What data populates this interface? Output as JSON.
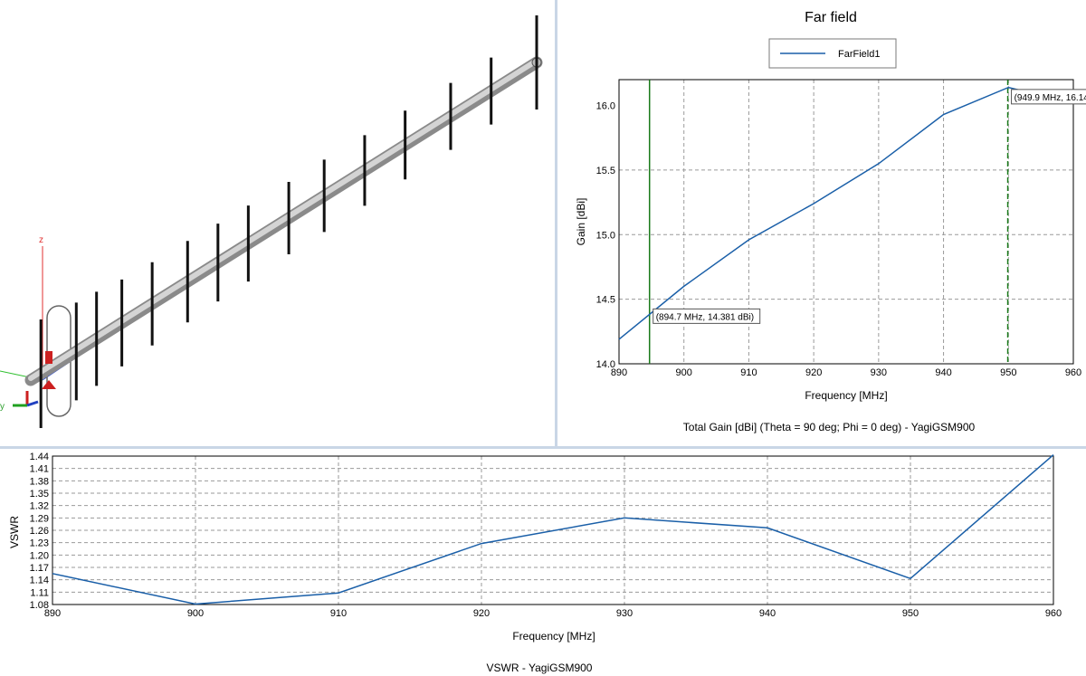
{
  "view3d": {
    "axis_labels": {
      "z": "z",
      "y": "y"
    },
    "colors": {
      "boom": "#bdbdbd",
      "element": "#111111",
      "axis_z": "#e03030",
      "axis_y": "#30c030",
      "axis_x": "#3050d0"
    }
  },
  "farfield": {
    "title": "Far field",
    "caption": "Total Gain [dBi] (Theta = 90 deg; Phi = 0 deg) - YagiGSM900",
    "markers": [
      {
        "x": 894.7,
        "label": "(894.7 MHz, 14.381 dBi)",
        "style": "solid"
      },
      {
        "x": 949.9,
        "label": "(949.9 MHz, 16.14",
        "style": "dashed"
      }
    ]
  },
  "vswr": {
    "caption": "VSWR - YagiGSM900"
  },
  "chart_data": [
    {
      "type": "line",
      "title": "Far field",
      "xlabel": "Frequency [MHz]",
      "ylabel": "Gain [dBi]",
      "xlim": [
        890,
        960
      ],
      "ylim": [
        14.0,
        16.2
      ],
      "x_ticks": [
        890,
        900,
        910,
        920,
        930,
        940,
        950,
        960
      ],
      "x_tick_labels": [
        "890",
        "900",
        "910",
        "920",
        "930",
        "940",
        "950",
        "960"
      ],
      "y_ticks": [
        14.0,
        14.5,
        15.0,
        15.5,
        16.0
      ],
      "y_tick_labels": [
        "14.0",
        "14.5",
        "15.0",
        "15.5",
        "16.0"
      ],
      "grid": true,
      "legend_position": "top-center",
      "series": [
        {
          "name": "FarField1",
          "color": "#1a5fa8",
          "x": [
            890,
            900,
            910,
            920,
            930,
            940,
            950,
            960
          ],
          "y": [
            14.19,
            14.6,
            14.96,
            15.24,
            15.55,
            15.93,
            16.14,
            16.02
          ]
        }
      ]
    },
    {
      "type": "line",
      "title": "",
      "xlabel": "Frequency [MHz]",
      "ylabel": "VSWR",
      "xlim": [
        890,
        960
      ],
      "ylim": [
        1.08,
        1.44
      ],
      "x_ticks": [
        890,
        900,
        910,
        920,
        930,
        940,
        950,
        960
      ],
      "x_tick_labels": [
        "890",
        "900",
        "910",
        "920",
        "930",
        "940",
        "950",
        "960"
      ],
      "y_ticks": [
        1.08,
        1.11,
        1.14,
        1.17,
        1.2,
        1.23,
        1.26,
        1.29,
        1.32,
        1.35,
        1.38,
        1.41,
        1.44
      ],
      "y_tick_labels": [
        "1.08",
        "1.11",
        "1.14",
        "1.17",
        "1.20",
        "1.23",
        "1.26",
        "1.29",
        "1.32",
        "1.35",
        "1.38",
        "1.41",
        "1.44"
      ],
      "grid": true,
      "series": [
        {
          "name": "",
          "color": "#1a5fa8",
          "x": [
            890,
            900,
            910,
            920,
            930,
            940,
            950,
            960
          ],
          "y": [
            1.155,
            1.081,
            1.108,
            1.228,
            1.29,
            1.266,
            1.143,
            1.443
          ]
        }
      ]
    }
  ]
}
